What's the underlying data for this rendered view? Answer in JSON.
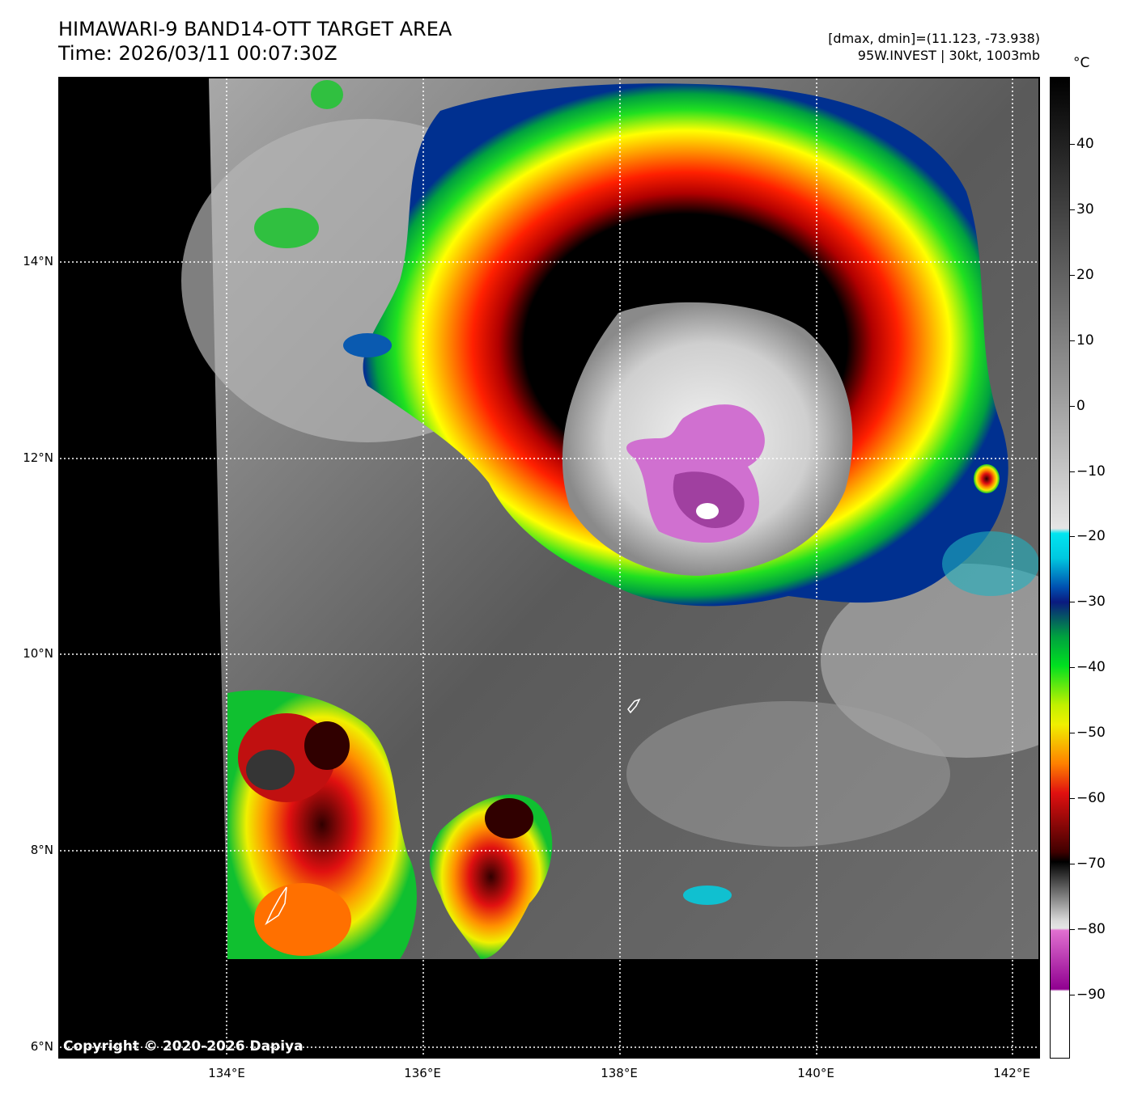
{
  "header": {
    "title_line1": "HIMAWARI-9 BAND14-OTT TARGET AREA",
    "title_line2": "Time: 2026/03/11 00:07:30Z",
    "dmax_dmin": "[dmax, dmin]=(11.123, -73.938)",
    "storm_info": "95W.INVEST | 30kt, 1003mb"
  },
  "map": {
    "lat_labels": [
      "14°N",
      "12°N",
      "10°N",
      "8°N",
      "6°N"
    ],
    "lon_labels": [
      "134°E",
      "136°E",
      "138°E",
      "140°E",
      "142°E"
    ],
    "copyright": "Copyright © 2020-2026 Dapiya"
  },
  "colorbar": {
    "unit": "°C",
    "ticks": [
      "40",
      "30",
      "20",
      "10",
      "0",
      "−10",
      "−20",
      "−30",
      "−40",
      "−50",
      "−60",
      "−70",
      "−80",
      "−90"
    ],
    "colors": {
      "warm": "#000000",
      "gray_mid": "#9a9a9a",
      "gray_cold": "#e5e5e5",
      "cyan": "#00e5f0",
      "blue": "#0050b0",
      "navy": "#0a1a80",
      "green": "#00e020",
      "yellow": "#f0f000",
      "orange": "#ff8000",
      "red": "#e01010",
      "dark_red": "#400000",
      "magenta": "#e070d0",
      "purple": "#900090",
      "white": "#ffffff"
    }
  }
}
